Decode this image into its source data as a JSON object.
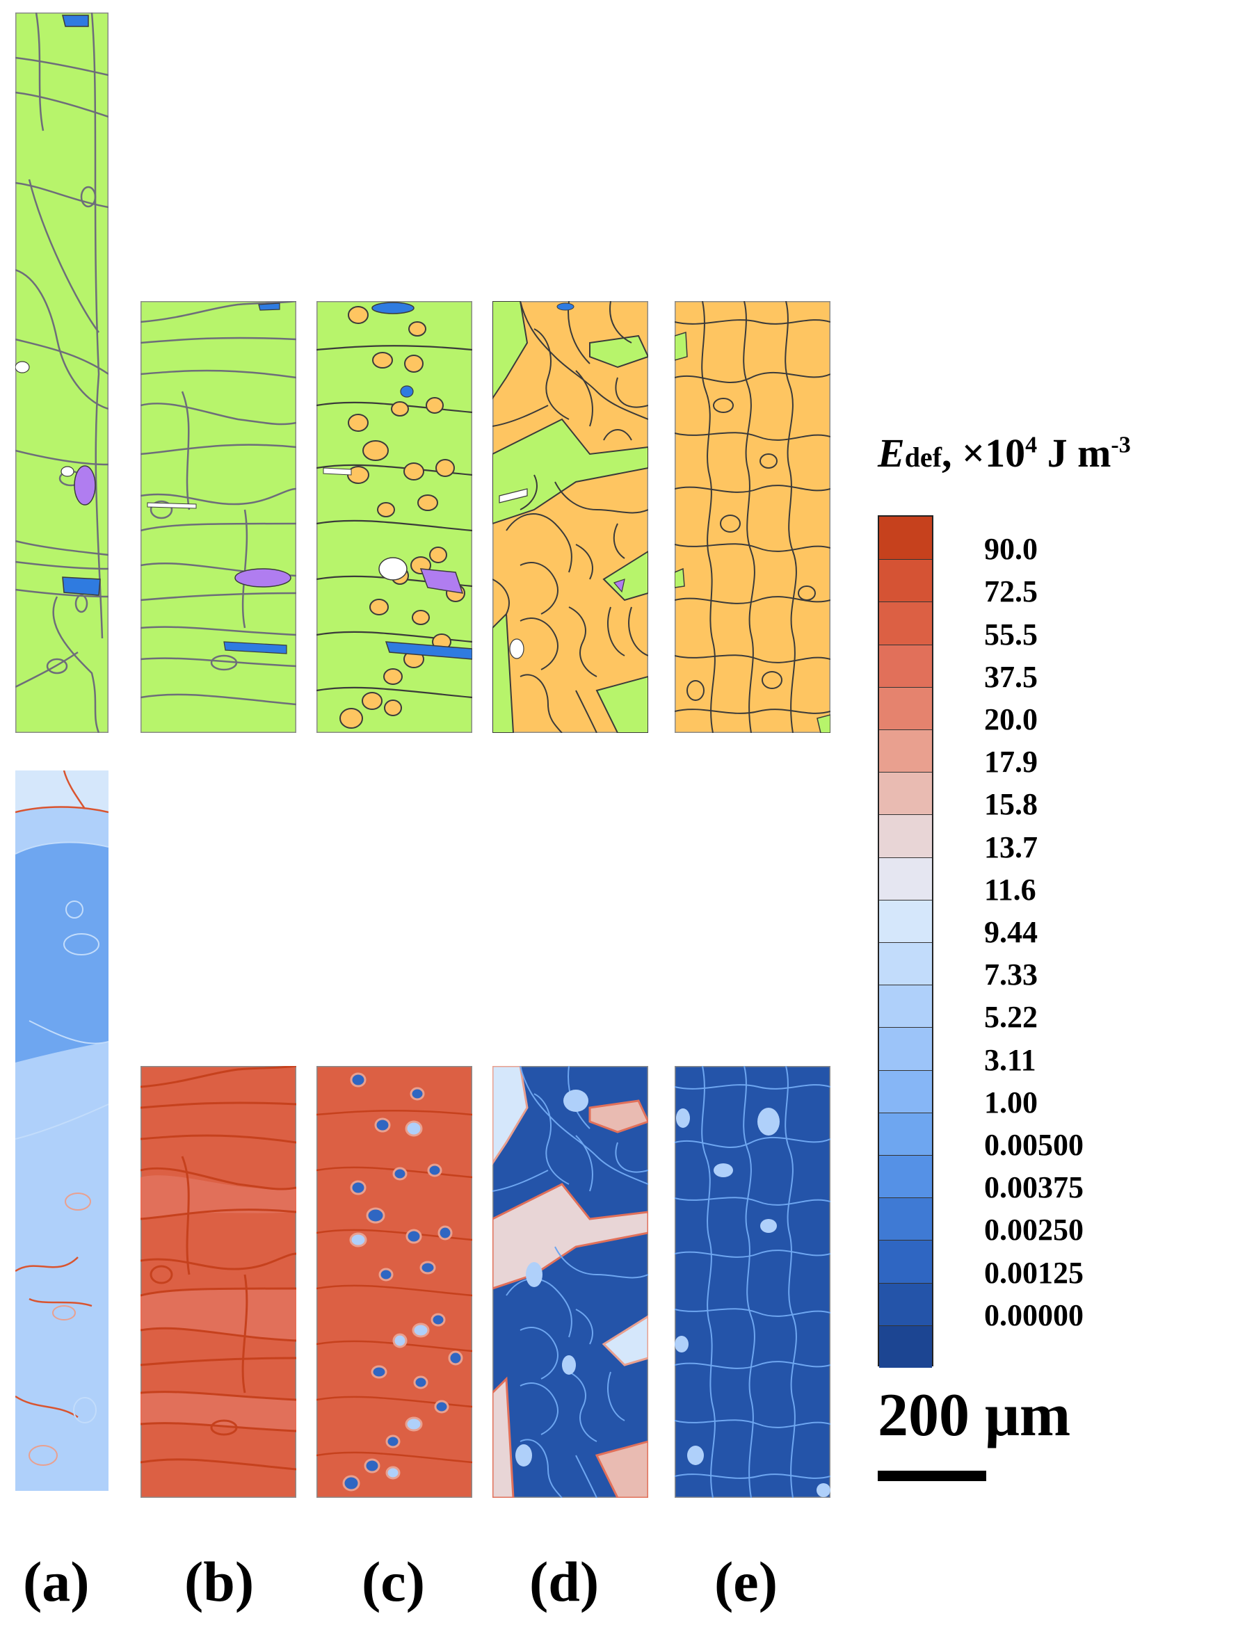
{
  "panel_labels": [
    "(a)",
    "(b)",
    "(c)",
    "(d)",
    "(e)"
  ],
  "colors": {
    "matrix_green": "#b7f46b",
    "recrystallized_orange": "#fec561",
    "grain_boundary_gray": "#6d6d7a",
    "grain_boundary_dark": "#3a3a3a",
    "purple_grain": "#b07df0",
    "blue_grain": "#2f7be0",
    "white_grain": "#ffffff",
    "energy_boundary_red": "#d9542f"
  },
  "legend": {
    "symbol": "E",
    "subscript": "def",
    "rest": ", ×10",
    "exponent": "4",
    "unit": " J m",
    "unit_exponent": "-3",
    "levels": [
      "90.0",
      "72.5",
      "55.5",
      "37.5",
      "20.0",
      "17.9",
      "15.8",
      "13.7",
      "11.6",
      "9.44",
      "7.33",
      "5.22",
      "3.11",
      "1.00",
      "0.00500",
      "0.00375",
      "0.00250",
      "0.00125",
      "0.00000"
    ],
    "level_colors": [
      "#c6411d",
      "#d55334",
      "#dc6044",
      "#e1705a",
      "#e5836e",
      "#e9a08f",
      "#e9bbb2",
      "#e8d5d6",
      "#e5e6f1",
      "#d5e7fb",
      "#c2dcfb",
      "#afd0fa",
      "#9cc4f9",
      "#86b6f6",
      "#6ea6f0",
      "#5591e6",
      "#3f7ad4",
      "#2f66c2",
      "#2454a9",
      "#1c4592"
    ]
  },
  "scale_bar": {
    "label": "200 μm"
  }
}
